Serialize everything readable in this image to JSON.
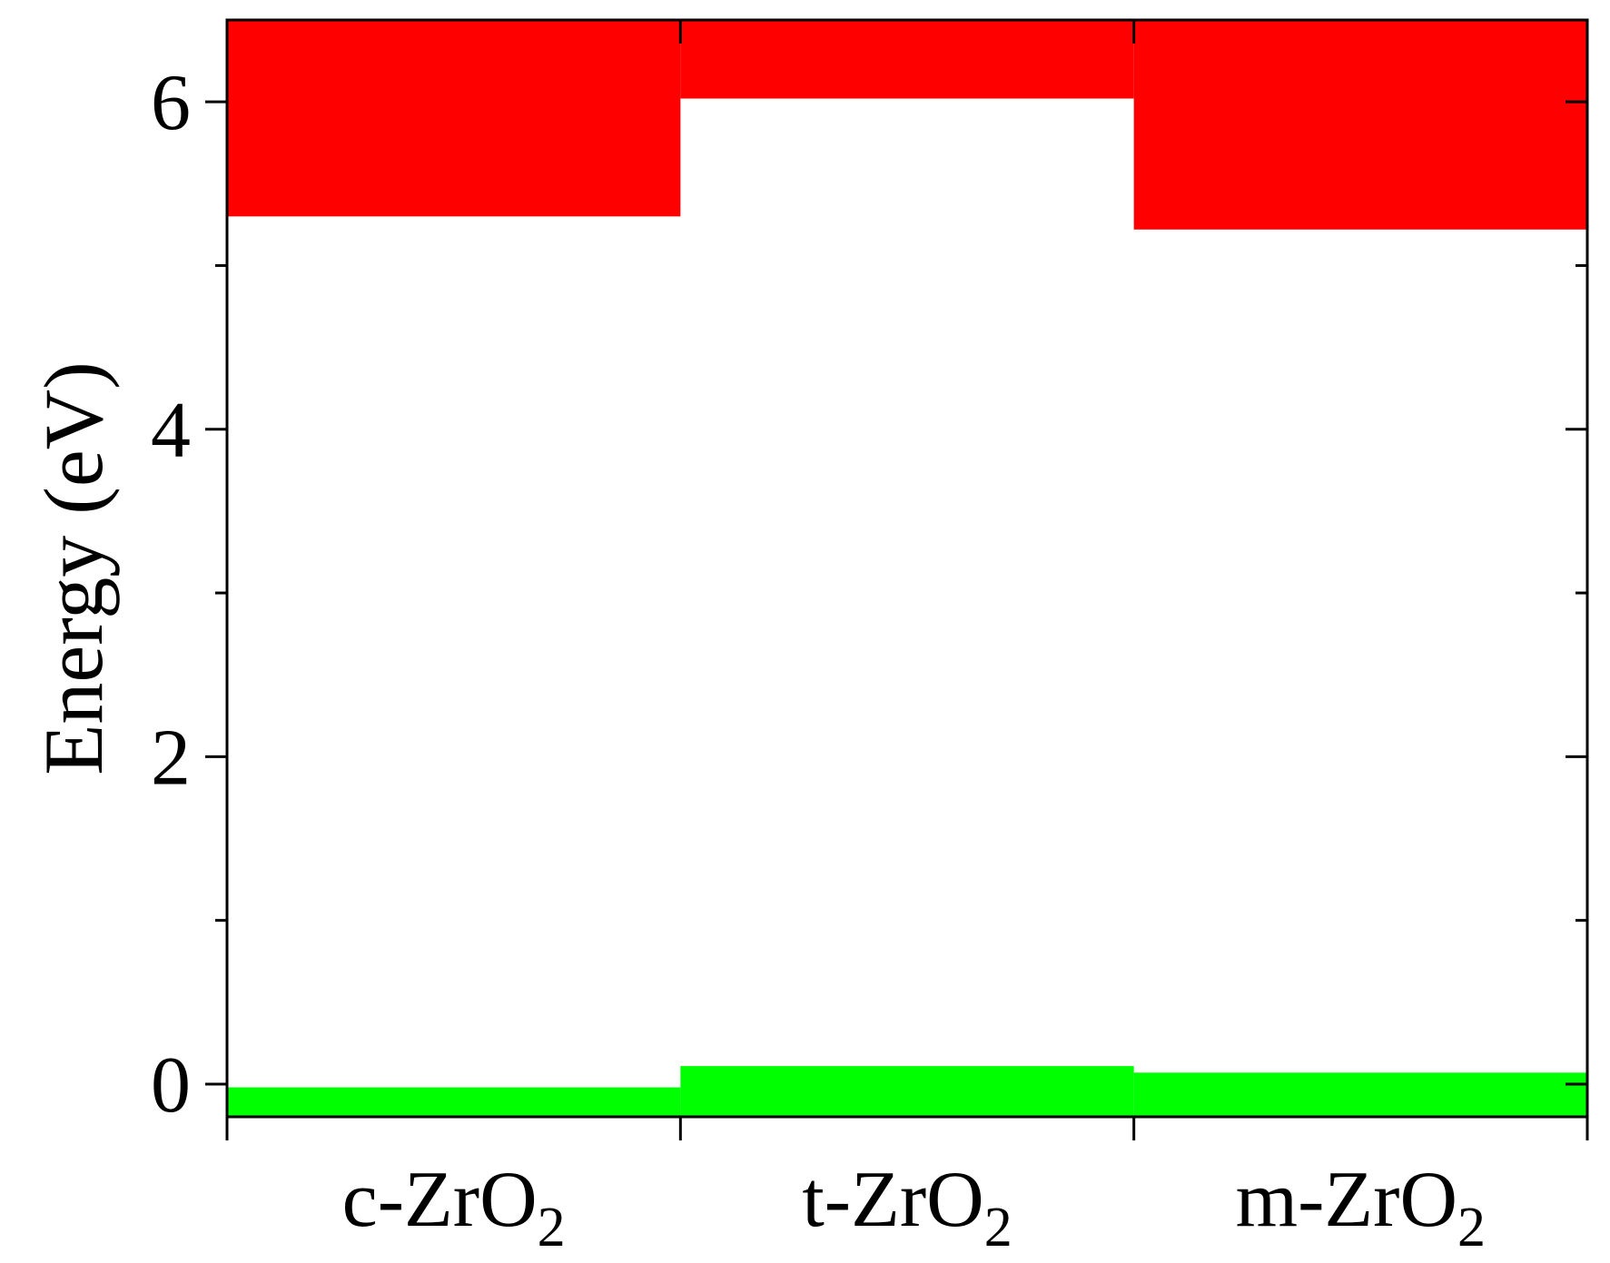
{
  "chart_data": {
    "type": "bar",
    "categories": [
      {
        "prefix": "c-ZrO",
        "sub": "2"
      },
      {
        "prefix": "t-ZrO",
        "sub": "2"
      },
      {
        "prefix": "m-ZrO",
        "sub": "2"
      }
    ],
    "series": [
      {
        "color": "#ff0000",
        "bands": [
          {
            "low": 5.3,
            "high": 6.5
          },
          {
            "low": 6.02,
            "high": 6.5
          },
          {
            "low": 5.22,
            "high": 6.5
          }
        ]
      },
      {
        "color": "#00ff00",
        "bands": [
          {
            "low": -0.2,
            "high": -0.02
          },
          {
            "low": -0.2,
            "high": 0.11
          },
          {
            "low": -0.2,
            "high": 0.07
          }
        ]
      }
    ],
    "ylabel": "Energy (eV)",
    "ylim": [
      -0.2,
      6.5
    ],
    "yticks_major": [
      0,
      2,
      4,
      6
    ],
    "yticks_minor": [
      1,
      3,
      5
    ],
    "grid": false,
    "legend": "none"
  }
}
